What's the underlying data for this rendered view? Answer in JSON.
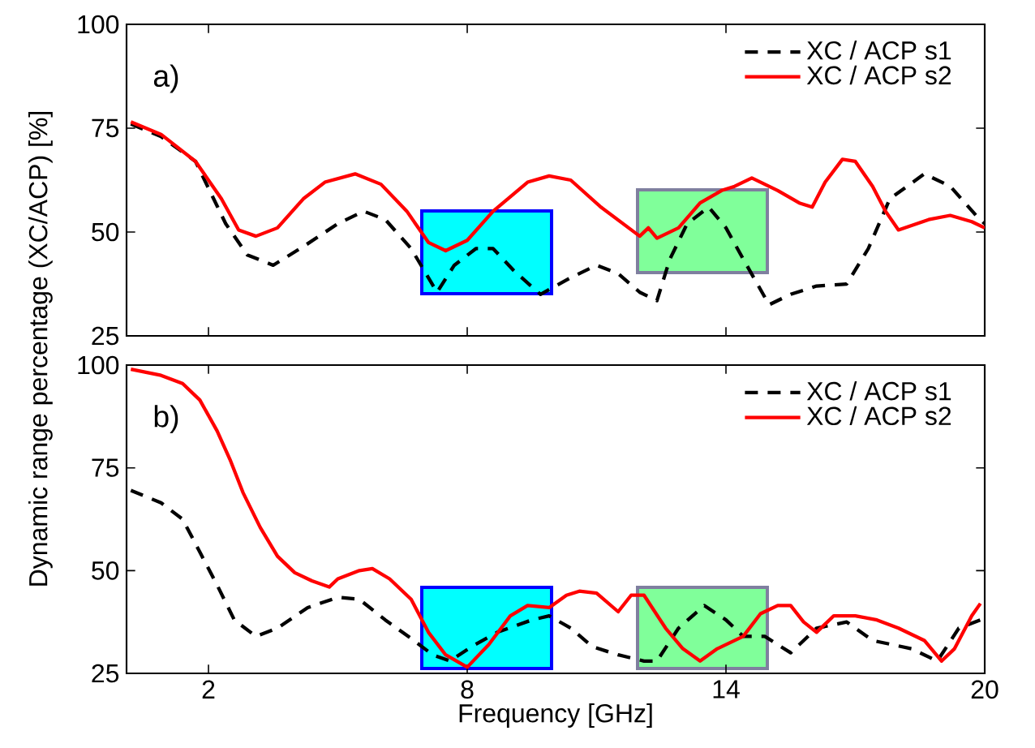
{
  "chart_data": [
    {
      "type": "line",
      "ylabel": "Dynamic range percentage (XC/ACP) [%]",
      "annotations": [
        "a)"
      ],
      "xlim": [
        0.1,
        20
      ],
      "ylim": [
        25,
        100
      ],
      "xticks": [
        2,
        8,
        14,
        20
      ],
      "yticks": [
        25,
        50,
        75,
        100
      ],
      "tick_labels": "y",
      "legend": "top right",
      "series": [
        {
          "name": "XC / ACP s1",
          "color": "#000000",
          "line_style": "dashed",
          "x": [
            0.2,
            0.9,
            1.7,
            2.4,
            2.9,
            3.5,
            4.2,
            5.0,
            5.6,
            6.1,
            6.7,
            7.3,
            7.7,
            8.2,
            8.6,
            9.1,
            9.7,
            10.4,
            11.0,
            11.5,
            12.0,
            12.4,
            12.7,
            13.1,
            13.6,
            14.0,
            14.4,
            15.0,
            15.5,
            16.1,
            16.8,
            17.3,
            17.8,
            18.6,
            19.2,
            19.8,
            20.0
          ],
          "values": [
            76,
            73,
            67,
            52,
            44.5,
            42,
            46.5,
            52,
            55,
            53,
            46,
            35.5,
            42,
            46,
            46,
            40.5,
            35,
            39,
            42,
            40,
            35.5,
            33.5,
            43.5,
            52,
            56,
            51,
            43.5,
            32.5,
            35,
            37,
            37.5,
            46,
            58,
            64,
            61,
            54,
            52
          ]
        },
        {
          "name": "XC / ACP s2",
          "color": "#ff0000",
          "line_style": "solid",
          "x": [
            0.2,
            0.9,
            1.7,
            2.3,
            2.7,
            3.1,
            3.6,
            4.2,
            4.7,
            5.4,
            6.0,
            6.6,
            7.1,
            7.5,
            8.0,
            8.6,
            9.4,
            9.9,
            10.4,
            11.1,
            12.0,
            12.2,
            12.4,
            12.9,
            13.4,
            13.9,
            14.2,
            14.6,
            15.2,
            15.7,
            16.0,
            16.3,
            16.7,
            17.0,
            17.4,
            17.7,
            18.0,
            18.7,
            19.2,
            19.7,
            20.0
          ],
          "values": [
            76.5,
            73.5,
            67,
            58,
            50.5,
            49,
            51,
            58,
            62,
            64,
            61.5,
            55,
            47.5,
            45.5,
            48,
            55,
            62,
            63.5,
            62.5,
            56,
            49,
            51,
            48.5,
            51,
            57,
            60,
            61,
            63,
            60,
            57,
            56,
            62,
            67.5,
            67,
            61,
            55,
            50.5,
            53,
            54,
            52.5,
            51
          ]
        }
      ]
    },
    {
      "type": "line",
      "xlabel": "Frequency [GHz]",
      "annotations": [
        "b)"
      ],
      "xlim": [
        0.1,
        20
      ],
      "ylim": [
        25,
        100
      ],
      "xticks": [
        2,
        8,
        14,
        20
      ],
      "yticks": [
        25,
        50,
        75,
        100
      ],
      "legend": "top right",
      "series": [
        {
          "name": "XC / ACP s1",
          "color": "#000000",
          "line_style": "dashed",
          "x": [
            0.2,
            0.9,
            1.4,
            1.8,
            2.2,
            2.6,
            3.1,
            3.6,
            4.3,
            5.0,
            5.5,
            6.1,
            6.7,
            7.2,
            7.6,
            8.1,
            8.7,
            9.5,
            9.9,
            10.4,
            10.9,
            11.5,
            12.1,
            12.4,
            12.9,
            13.5,
            14.0,
            14.4,
            14.9,
            15.5,
            16.1,
            16.8,
            17.4,
            18.3,
            18.9,
            19.4,
            19.9
          ],
          "values": [
            69.5,
            66.5,
            62.5,
            54.5,
            46.5,
            38,
            34,
            36,
            41,
            43.5,
            43,
            38,
            33.5,
            29.5,
            28,
            31.5,
            35,
            38,
            39,
            36,
            31.5,
            29.5,
            28,
            28,
            36,
            41.5,
            38,
            34,
            34,
            30,
            36,
            37.5,
            33,
            31,
            28,
            36,
            38
          ]
        },
        {
          "name": "XC / ACP s2",
          "color": "#ff0000",
          "line_style": "solid",
          "x": [
            0.2,
            0.9,
            1.4,
            1.8,
            2.2,
            2.5,
            2.8,
            3.2,
            3.6,
            4.0,
            4.4,
            4.8,
            5.0,
            5.5,
            5.8,
            6.2,
            6.7,
            7.1,
            7.5,
            8.0,
            8.5,
            9.0,
            9.4,
            9.9,
            10.3,
            10.6,
            11.0,
            11.5,
            11.8,
            12.1,
            12.6,
            13.0,
            13.4,
            13.8,
            14.4,
            14.8,
            15.2,
            15.5,
            15.8,
            16.1,
            16.5,
            17.0,
            17.5,
            18.0,
            18.6,
            19.0,
            19.3,
            19.7,
            19.9
          ],
          "values": [
            99,
            97.5,
            95.5,
            91.5,
            84,
            77,
            69,
            60.5,
            53.5,
            49.5,
            47.5,
            46,
            48,
            50,
            50.5,
            48,
            43,
            35,
            29.5,
            26.5,
            32,
            39,
            41.5,
            41,
            44,
            45,
            44.5,
            40,
            44,
            44,
            36,
            31,
            28,
            31,
            34,
            39.5,
            41.5,
            41.5,
            37.5,
            35,
            39,
            39,
            38,
            36,
            33,
            28,
            31,
            39,
            42
          ]
        }
      ]
    }
  ]
}
